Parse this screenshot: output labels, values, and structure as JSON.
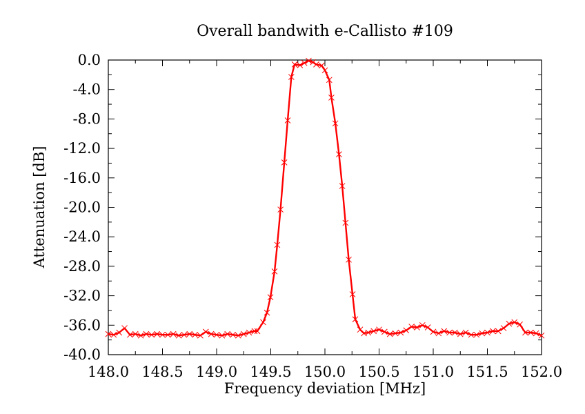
{
  "chart_data": {
    "type": "line",
    "title": "Overall bandwith e-Callisto #109",
    "xlabel": "Frequency deviation [MHz]",
    "ylabel": "Attenuation [dB]",
    "xlim": [
      148.0,
      152.0
    ],
    "ylim": [
      -40.0,
      0.0
    ],
    "xticks": [
      "148.0",
      "148.5",
      "149.0",
      "149.5",
      "150.0",
      "150.5",
      "151.0",
      "151.5",
      "152.0"
    ],
    "xtick_values": [
      148.0,
      148.5,
      149.0,
      149.5,
      150.0,
      150.5,
      151.0,
      151.5,
      152.0
    ],
    "yticks": [
      "0.0",
      "-4.0",
      "-8.0",
      "-12.0",
      "-16.0",
      "-20.0",
      "-24.0",
      "-28.0",
      "-32.0",
      "-36.0",
      "-40.0"
    ],
    "ytick_values": [
      0,
      -4,
      -8,
      -12,
      -16,
      -20,
      -24,
      -28,
      -32,
      -36,
      -40
    ],
    "grid": false,
    "series": [
      {
        "name": "attenuation",
        "color": "#ff0000",
        "marker": "x",
        "points": [
          [
            148.0,
            -37.2
          ],
          [
            148.05,
            -37.3
          ],
          [
            148.1,
            -37.0
          ],
          [
            148.15,
            -36.4
          ],
          [
            148.2,
            -37.3
          ],
          [
            148.25,
            -37.2
          ],
          [
            148.3,
            -37.4
          ],
          [
            148.35,
            -37.2
          ],
          [
            148.4,
            -37.3
          ],
          [
            148.45,
            -37.2
          ],
          [
            148.5,
            -37.3
          ],
          [
            148.55,
            -37.3
          ],
          [
            148.6,
            -37.2
          ],
          [
            148.65,
            -37.4
          ],
          [
            148.7,
            -37.3
          ],
          [
            148.75,
            -37.2
          ],
          [
            148.8,
            -37.3
          ],
          [
            148.85,
            -37.4
          ],
          [
            148.9,
            -36.9
          ],
          [
            148.95,
            -37.2
          ],
          [
            149.0,
            -37.3
          ],
          [
            149.05,
            -37.4
          ],
          [
            149.1,
            -37.2
          ],
          [
            149.15,
            -37.3
          ],
          [
            149.2,
            -37.4
          ],
          [
            149.25,
            -37.2
          ],
          [
            149.3,
            -37.0
          ],
          [
            149.35,
            -36.8
          ],
          [
            149.376,
            -36.8
          ],
          [
            149.43,
            -35.6
          ],
          [
            149.465,
            -34.3
          ],
          [
            149.497,
            -32.2
          ],
          [
            149.535,
            -28.7
          ],
          [
            149.56,
            -25.1
          ],
          [
            149.59,
            -20.3
          ],
          [
            149.625,
            -13.9
          ],
          [
            149.656,
            -8.2
          ],
          [
            149.69,
            -2.3
          ],
          [
            149.72,
            -0.6
          ],
          [
            149.77,
            -0.7
          ],
          [
            149.81,
            -0.4
          ],
          [
            149.85,
            -0.1
          ],
          [
            149.89,
            -0.3
          ],
          [
            149.92,
            -0.6
          ],
          [
            149.97,
            -0.75
          ],
          [
            150.0,
            -1.4
          ],
          [
            150.04,
            -2.7
          ],
          [
            150.06,
            -5.1
          ],
          [
            150.096,
            -8.6
          ],
          [
            150.13,
            -12.8
          ],
          [
            150.16,
            -17.1
          ],
          [
            150.19,
            -22.1
          ],
          [
            150.22,
            -27.1
          ],
          [
            150.255,
            -31.8
          ],
          [
            150.28,
            -35.2
          ],
          [
            150.325,
            -36.6
          ],
          [
            150.36,
            -37.1
          ],
          [
            150.4,
            -37.0
          ],
          [
            150.45,
            -36.8
          ],
          [
            150.5,
            -36.6
          ],
          [
            150.55,
            -36.9
          ],
          [
            150.6,
            -37.2
          ],
          [
            150.65,
            -37.1
          ],
          [
            150.7,
            -37.0
          ],
          [
            150.75,
            -36.7
          ],
          [
            150.8,
            -36.2
          ],
          [
            150.85,
            -36.3
          ],
          [
            150.9,
            -36.0
          ],
          [
            150.95,
            -36.3
          ],
          [
            151.0,
            -36.9
          ],
          [
            151.05,
            -37.1
          ],
          [
            151.1,
            -36.8
          ],
          [
            151.15,
            -37.0
          ],
          [
            151.2,
            -37.0
          ],
          [
            151.25,
            -37.2
          ],
          [
            151.3,
            -37.0
          ],
          [
            151.35,
            -37.3
          ],
          [
            151.4,
            -37.3
          ],
          [
            151.45,
            -37.1
          ],
          [
            151.5,
            -37.0
          ],
          [
            151.55,
            -36.8
          ],
          [
            151.6,
            -36.8
          ],
          [
            151.65,
            -36.4
          ],
          [
            151.7,
            -35.8
          ],
          [
            151.75,
            -35.6
          ],
          [
            151.8,
            -35.9
          ],
          [
            151.85,
            -37.0
          ],
          [
            151.9,
            -37.0
          ],
          [
            151.95,
            -37.1
          ],
          [
            152.0,
            -37.4
          ]
        ]
      }
    ]
  }
}
